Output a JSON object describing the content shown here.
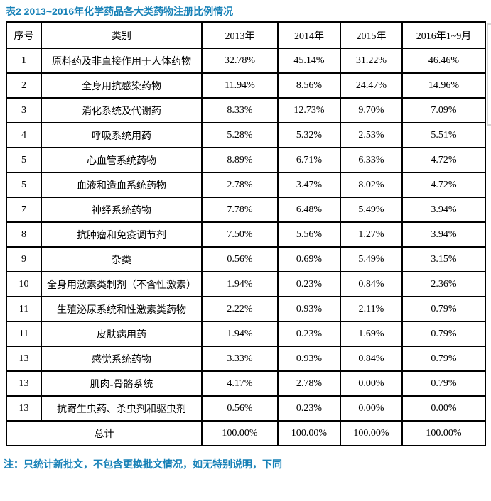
{
  "title": "表2 2013~2016年化学药品各大类药物注册比例情况",
  "table": {
    "headers": [
      "序号",
      "类别",
      "2013年",
      "2014年",
      "2015年",
      "2016年1~9月"
    ],
    "rows": [
      [
        "1",
        "原料药及非直接作用于人体药物",
        "32.78%",
        "45.14%",
        "31.22%",
        "46.46%"
      ],
      [
        "2",
        "全身用抗感染药物",
        "11.94%",
        "8.56%",
        "24.47%",
        "14.96%"
      ],
      [
        "3",
        "消化系统及代谢药",
        "8.33%",
        "12.73%",
        "9.70%",
        "7.09%"
      ],
      [
        "4",
        "呼吸系统用药",
        "5.28%",
        "5.32%",
        "2.53%",
        "5.51%"
      ],
      [
        "5",
        "心血管系统药物",
        "8.89%",
        "6.71%",
        "6.33%",
        "4.72%"
      ],
      [
        "5",
        "血液和造血系统药物",
        "2.78%",
        "3.47%",
        "8.02%",
        "4.72%"
      ],
      [
        "7",
        "神经系统药物",
        "7.78%",
        "6.48%",
        "5.49%",
        "3.94%"
      ],
      [
        "8",
        "抗肿瘤和免疫调节剂",
        "7.50%",
        "5.56%",
        "1.27%",
        "3.94%"
      ],
      [
        "9",
        "杂类",
        "0.56%",
        "0.69%",
        "5.49%",
        "3.15%"
      ],
      [
        "10",
        "全身用激素类制剂（不含性激素）",
        "1.94%",
        "0.23%",
        "0.84%",
        "2.36%"
      ],
      [
        "11",
        "生殖泌尿系统和性激素类药物",
        "2.22%",
        "0.93%",
        "2.11%",
        "0.79%"
      ],
      [
        "11",
        "皮肤病用药",
        "1.94%",
        "0.23%",
        "1.69%",
        "0.79%"
      ],
      [
        "13",
        "感觉系统药物",
        "3.33%",
        "0.93%",
        "0.84%",
        "0.79%"
      ],
      [
        "13",
        "肌肉-骨骼系统",
        "4.17%",
        "2.78%",
        "0.00%",
        "0.79%"
      ],
      [
        "13",
        "抗寄生虫药、杀虫剂和驱虫剂",
        "0.56%",
        "0.23%",
        "0.00%",
        "0.00%"
      ]
    ],
    "total": {
      "label": "总计",
      "values": [
        "100.00%",
        "100.00%",
        "100.00%",
        "100.00%"
      ]
    }
  },
  "note": "注：只统计新批文，不包含更换批文情况，如无特别说明，下同",
  "colors": {
    "accent": "#1781b7",
    "table_border": "#000000",
    "frame_gray": "#d6d6d6"
  }
}
